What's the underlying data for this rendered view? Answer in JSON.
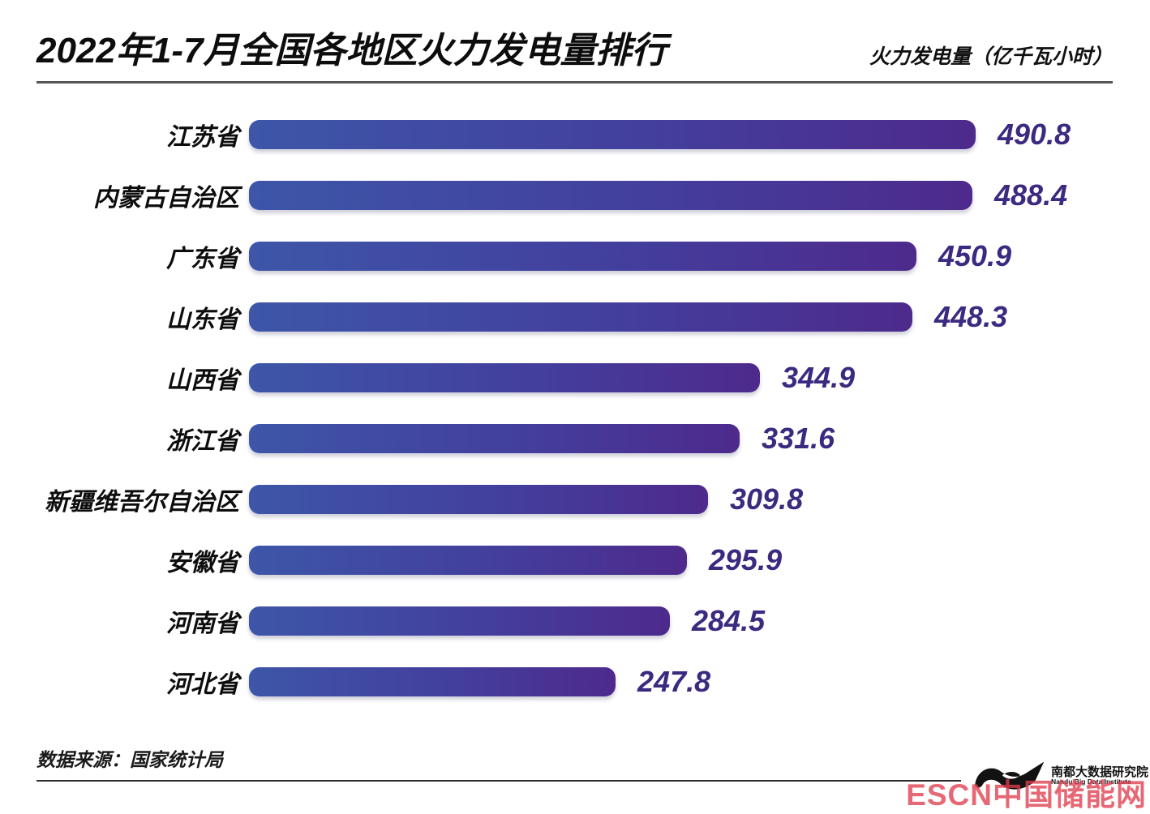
{
  "header": {
    "title": "2022年1-7月全国各地区火力发电量排行",
    "unit_label": "火力发电量（亿千瓦小时）"
  },
  "chart_data": {
    "type": "bar",
    "orientation": "horizontal",
    "title": "2022年1-7月全国各地区火力发电量排行",
    "unit": "亿千瓦小时",
    "categories": [
      "江苏省",
      "内蒙古自治区",
      "广东省",
      "山东省",
      "山西省",
      "浙江省",
      "新疆维吾尔自治区",
      "安徽省",
      "河南省",
      "河北省"
    ],
    "values": [
      490.8,
      488.4,
      450.9,
      448.3,
      344.9,
      331.6,
      309.8,
      295.9,
      284.5,
      247.8
    ],
    "xlim": [
      0,
      490.8
    ],
    "grid": false,
    "legend": "none",
    "bar_gradient_start": "#3d56a8",
    "bar_gradient_end": "#4d2a8c",
    "value_label_color": "#3b2a80"
  },
  "footer": {
    "source": "数据来源：国家统计局",
    "logo_cn": "南都大数据研究院",
    "logo_en": "Nandu Big Data Institute",
    "watermark": "ESCN中国储能网"
  }
}
